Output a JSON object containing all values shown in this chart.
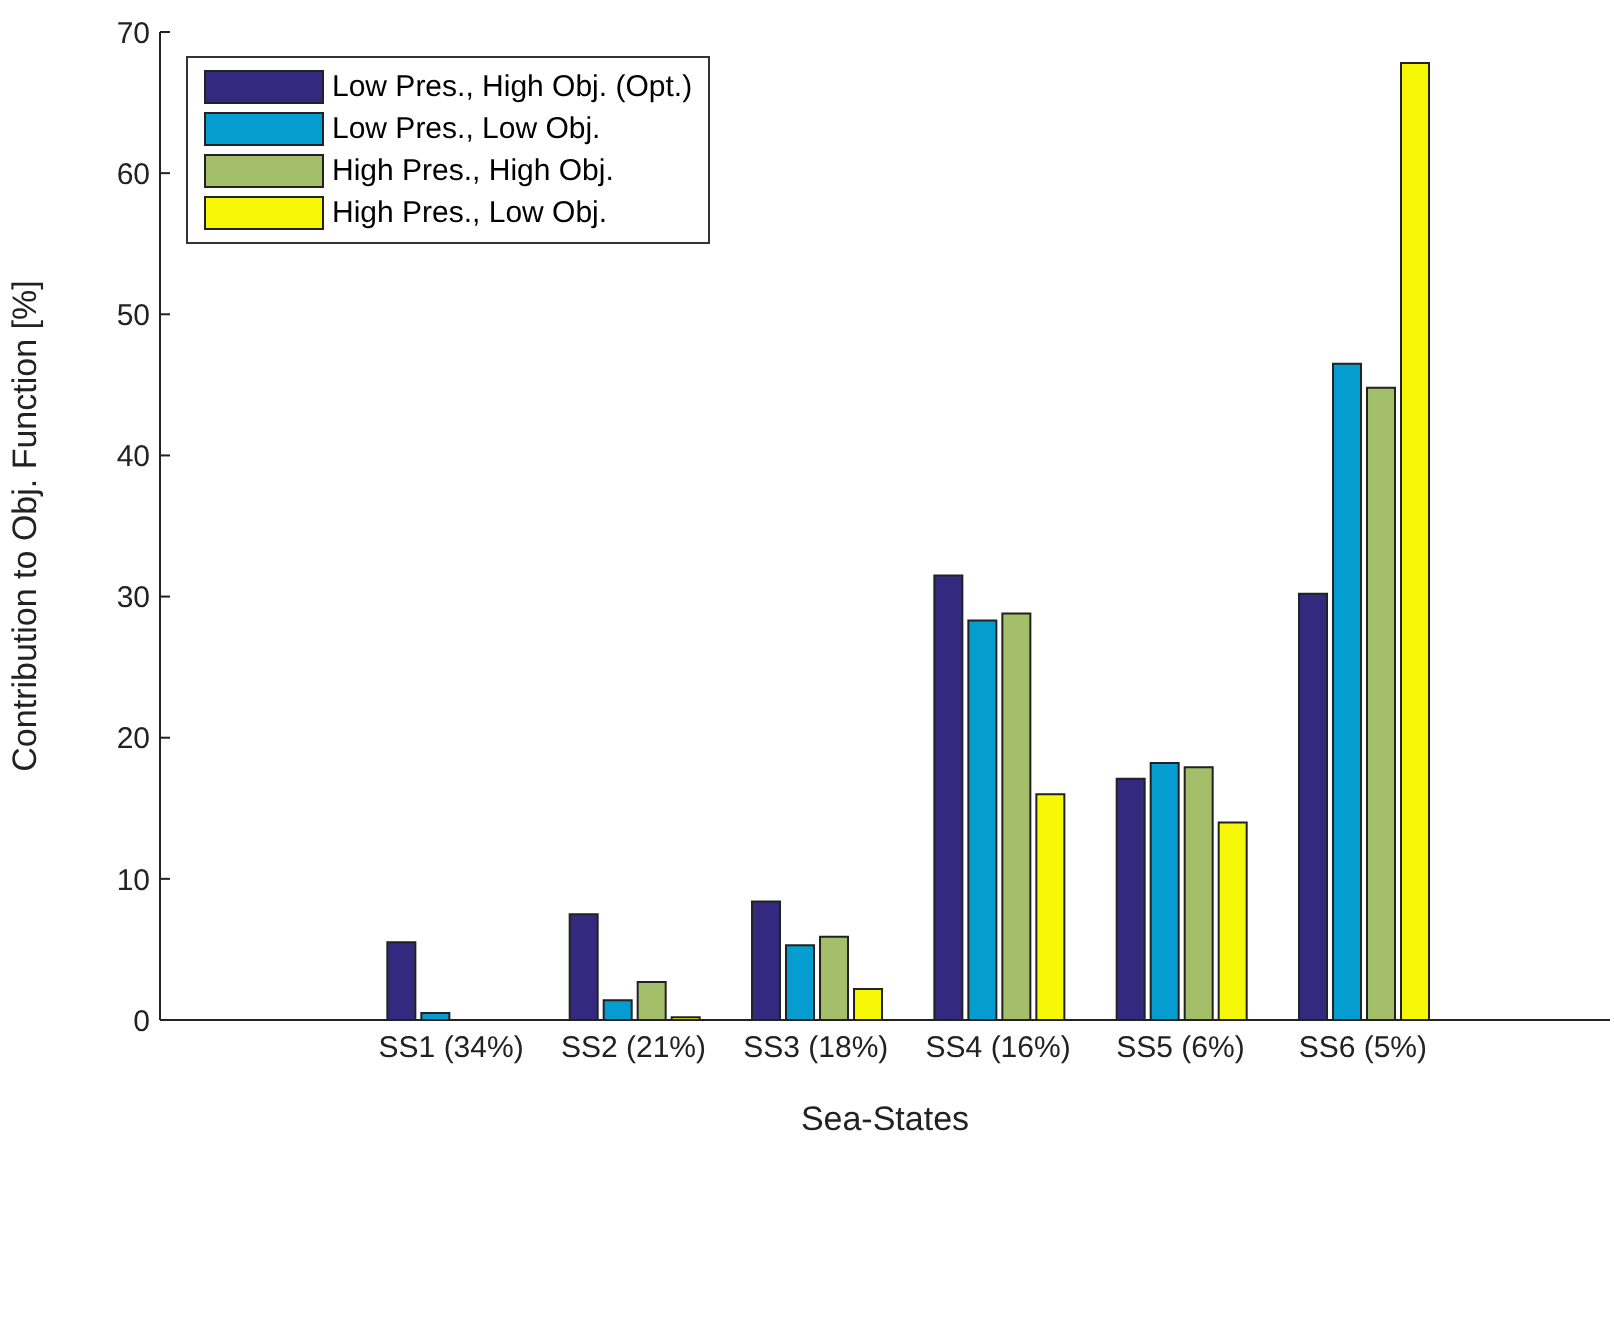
{
  "chart_data": {
    "type": "bar",
    "xlabel": "Sea-States",
    "ylabel": "Contribution to Obj. Function [%]",
    "categories": [
      "SS1 (34%)",
      "SS2 (21%)",
      "SS3 (18%)",
      "SS4 (16%)",
      "SS5 (6%)",
      "SS6 (5%)"
    ],
    "series": [
      {
        "name": "Low Pres., High Obj. (Opt.)",
        "color": "#35297f",
        "values": [
          5.5,
          7.5,
          8.4,
          31.5,
          17.1,
          30.2
        ]
      },
      {
        "name": "Low Pres., Low Obj.",
        "color": "#059ccf",
        "values": [
          0.5,
          1.4,
          5.3,
          28.3,
          18.2,
          46.5
        ]
      },
      {
        "name": "High Pres., High Obj.",
        "color": "#a4bf6a",
        "values": [
          null,
          2.7,
          5.9,
          28.8,
          17.9,
          44.8
        ]
      },
      {
        "name": "High Pres., Low Obj.",
        "color": "#f7f708",
        "values": [
          null,
          0.2,
          2.2,
          16,
          14,
          67.8
        ]
      }
    ],
    "ylim": [
      0,
      70
    ],
    "yticks": [
      0,
      10,
      20,
      30,
      40,
      50,
      60,
      70
    ],
    "grid": false,
    "legend": "top left"
  }
}
